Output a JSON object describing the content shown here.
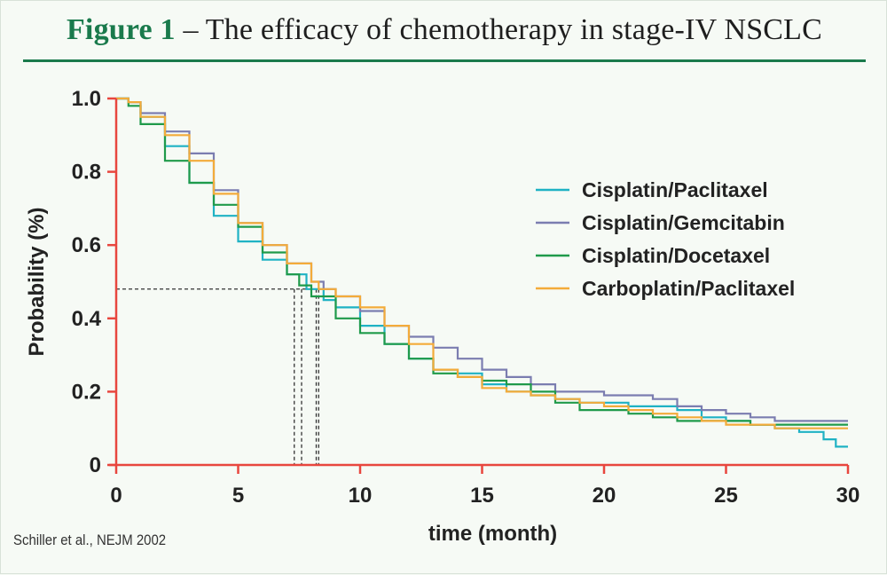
{
  "header": {
    "figure_label": "Figure 1",
    "dash": " – ",
    "title": "The efficacy of chemotherapy in stage-IV NSCLC"
  },
  "citation": "Schiller et al., NEJM 2002",
  "colors": {
    "axis": "#e8463e",
    "accent": "#1a7a4c",
    "ref_line": "#333333"
  },
  "chart_data": {
    "type": "line",
    "title": "The efficacy of chemotherapy in stage-IV NSCLC",
    "xlabel": "time (month)",
    "ylabel": "Probability (%)",
    "xlim": [
      0,
      30
    ],
    "ylim": [
      0,
      1.0
    ],
    "xticks": [
      0,
      5,
      10,
      15,
      20,
      25,
      30
    ],
    "yticks": [
      0,
      0.2,
      0.4,
      0.6,
      0.8,
      1.0
    ],
    "ytick_labels": [
      "0",
      "0.2",
      "0.4",
      "0.6",
      "0.8",
      "1.0"
    ],
    "grid": false,
    "legend_position": "right",
    "reference_lines": {
      "median_probability": 0.48,
      "median_times": [
        7.3,
        7.6,
        8.2,
        8.3
      ]
    },
    "series": [
      {
        "name": "Cisplatin/Paclitaxel",
        "color": "#1fb2c4",
        "x": [
          0,
          0.5,
          1,
          2,
          3,
          4,
          5,
          6,
          7,
          7.8,
          8.5,
          9,
          10,
          11,
          12,
          13,
          14,
          15,
          16,
          17,
          18,
          19,
          20,
          21,
          22,
          23,
          24,
          25,
          26,
          27,
          28,
          29,
          29.5,
          30
        ],
        "y": [
          1.0,
          0.99,
          0.95,
          0.87,
          0.77,
          0.68,
          0.61,
          0.56,
          0.52,
          0.48,
          0.45,
          0.43,
          0.38,
          0.33,
          0.29,
          0.26,
          0.25,
          0.22,
          0.2,
          0.19,
          0.18,
          0.17,
          0.17,
          0.16,
          0.16,
          0.15,
          0.13,
          0.12,
          0.11,
          0.1,
          0.09,
          0.07,
          0.05,
          0.05
        ]
      },
      {
        "name": "Cisplatin/Gemcitabin",
        "color": "#7b7db0",
        "x": [
          0,
          0.5,
          1,
          2,
          3,
          4,
          5,
          6,
          7,
          8,
          8.5,
          9,
          10,
          11,
          12,
          13,
          14,
          15,
          16,
          17,
          18,
          19,
          20,
          21,
          22,
          23,
          24,
          25,
          26,
          27,
          28,
          29,
          30
        ],
        "y": [
          1.0,
          0.99,
          0.96,
          0.91,
          0.85,
          0.75,
          0.66,
          0.6,
          0.55,
          0.5,
          0.48,
          0.46,
          0.42,
          0.38,
          0.35,
          0.32,
          0.29,
          0.26,
          0.24,
          0.22,
          0.2,
          0.2,
          0.19,
          0.19,
          0.18,
          0.16,
          0.15,
          0.14,
          0.13,
          0.12,
          0.12,
          0.12,
          0.12
        ]
      },
      {
        "name": "Cisplatin/Docetaxel",
        "color": "#1f9a4a",
        "x": [
          0,
          0.5,
          1,
          2,
          3,
          4,
          5,
          6,
          7,
          7.5,
          8,
          9,
          10,
          11,
          12,
          13,
          14,
          15,
          16,
          17,
          18,
          19,
          20,
          21,
          22,
          23,
          24,
          25,
          26,
          27,
          28,
          29,
          30
        ],
        "y": [
          1.0,
          0.98,
          0.93,
          0.83,
          0.77,
          0.71,
          0.65,
          0.58,
          0.52,
          0.49,
          0.46,
          0.4,
          0.36,
          0.33,
          0.29,
          0.25,
          0.24,
          0.23,
          0.22,
          0.2,
          0.17,
          0.15,
          0.15,
          0.14,
          0.13,
          0.12,
          0.12,
          0.12,
          0.11,
          0.11,
          0.11,
          0.11,
          0.11
        ]
      },
      {
        "name": "Carboplatin/Paclitaxel",
        "color": "#f3ab3a",
        "x": [
          0,
          0.5,
          1,
          2,
          3,
          4,
          5,
          6,
          7,
          8,
          8.3,
          9,
          10,
          11,
          12,
          13,
          14,
          15,
          16,
          17,
          18,
          19,
          20,
          21,
          22,
          23,
          24,
          25,
          26,
          27,
          28,
          29,
          30
        ],
        "y": [
          1.0,
          0.99,
          0.95,
          0.9,
          0.83,
          0.74,
          0.66,
          0.6,
          0.55,
          0.5,
          0.48,
          0.46,
          0.43,
          0.38,
          0.33,
          0.26,
          0.24,
          0.21,
          0.2,
          0.19,
          0.18,
          0.17,
          0.16,
          0.15,
          0.14,
          0.13,
          0.12,
          0.11,
          0.11,
          0.1,
          0.1,
          0.1,
          0.1
        ]
      }
    ]
  }
}
